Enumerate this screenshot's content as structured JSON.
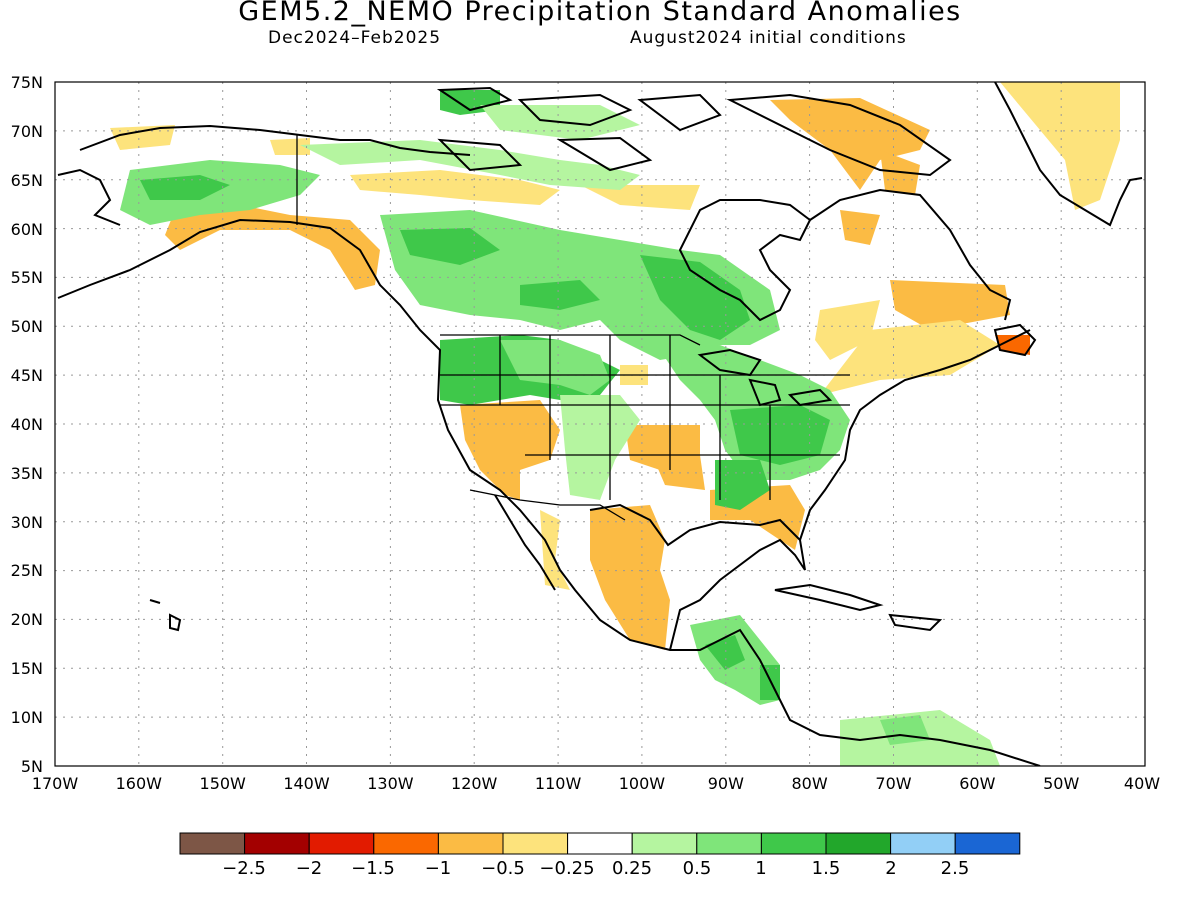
{
  "title": "GEM5.2_NEMO Precipitation Standard Anomalies",
  "period": "Dec2024–Feb2025",
  "initial_conditions": "August2024 initial conditions",
  "map": {
    "lon_labels": [
      "170W",
      "160W",
      "150W",
      "140W",
      "130W",
      "120W",
      "110W",
      "100W",
      "90W",
      "80W",
      "70W",
      "60W",
      "50W",
      "40W"
    ],
    "lat_labels": [
      "75N",
      "70N",
      "65N",
      "60N",
      "55N",
      "50N",
      "45N",
      "40N",
      "35N",
      "30N",
      "25N",
      "20N",
      "15N",
      "10N",
      "5N"
    ],
    "lon_range": [
      -170,
      -40
    ],
    "lat_range": [
      5,
      75
    ],
    "grid": "dotted"
  },
  "colorbar": {
    "colors": [
      "#7d5646",
      "#a30000",
      "#e21b00",
      "#fa6800",
      "#fbbb44",
      "#fde37c",
      "#ffffff",
      "#b5f5a0",
      "#7fe57a",
      "#3fc84a",
      "#22a72b",
      "#92cff6",
      "#1a66d4"
    ],
    "labels": [
      "−2.5",
      "−2",
      "−1.5",
      "−1",
      "−0.5",
      "−0.25",
      "0.25",
      "0.5",
      "1",
      "1.5",
      "2",
      "2.5"
    ]
  },
  "colors": {
    "dry_light": "#fde37c",
    "dry": "#fbbb44",
    "dry_strong": "#fa6800",
    "wet_light": "#b5f5a0",
    "wet": "#7fe57a",
    "wet_mid": "#3fc84a",
    "wet_strong": "#22a72b"
  }
}
